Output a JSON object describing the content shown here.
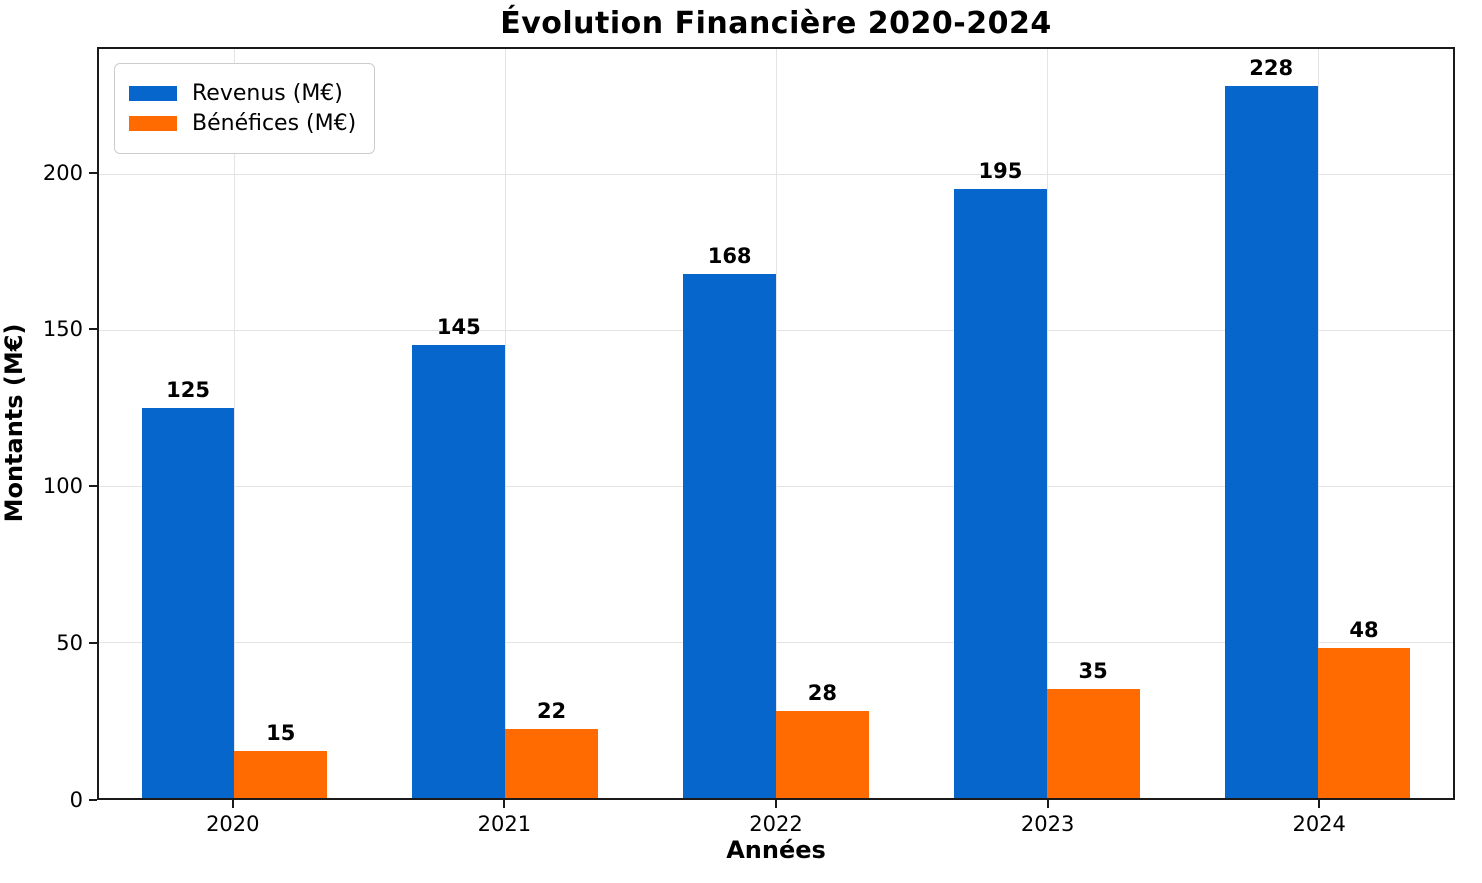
{
  "chart_data": {
    "type": "bar",
    "title": "Évolution Financière 2020-2024",
    "xlabel": "Années",
    "ylabel": "Montants (M€)",
    "categories": [
      "2020",
      "2021",
      "2022",
      "2023",
      "2024"
    ],
    "series": [
      {
        "name": "Revenus (M€)",
        "color": "#0666CB",
        "values": [
          125,
          145,
          168,
          195,
          228
        ]
      },
      {
        "name": "Bénéfices (M€)",
        "color": "#FF6B00",
        "values": [
          15,
          22,
          28,
          35,
          48
        ]
      }
    ],
    "ylim": [
      0,
      240
    ],
    "yticks": [
      0,
      50,
      100,
      150,
      200
    ],
    "grid": true,
    "legend_position": "upper left",
    "value_labels": true,
    "colors": {
      "axis": "#1a1a1a",
      "gridline": "#e4e4e4",
      "background": "#ffffff",
      "text": "#000000"
    }
  }
}
